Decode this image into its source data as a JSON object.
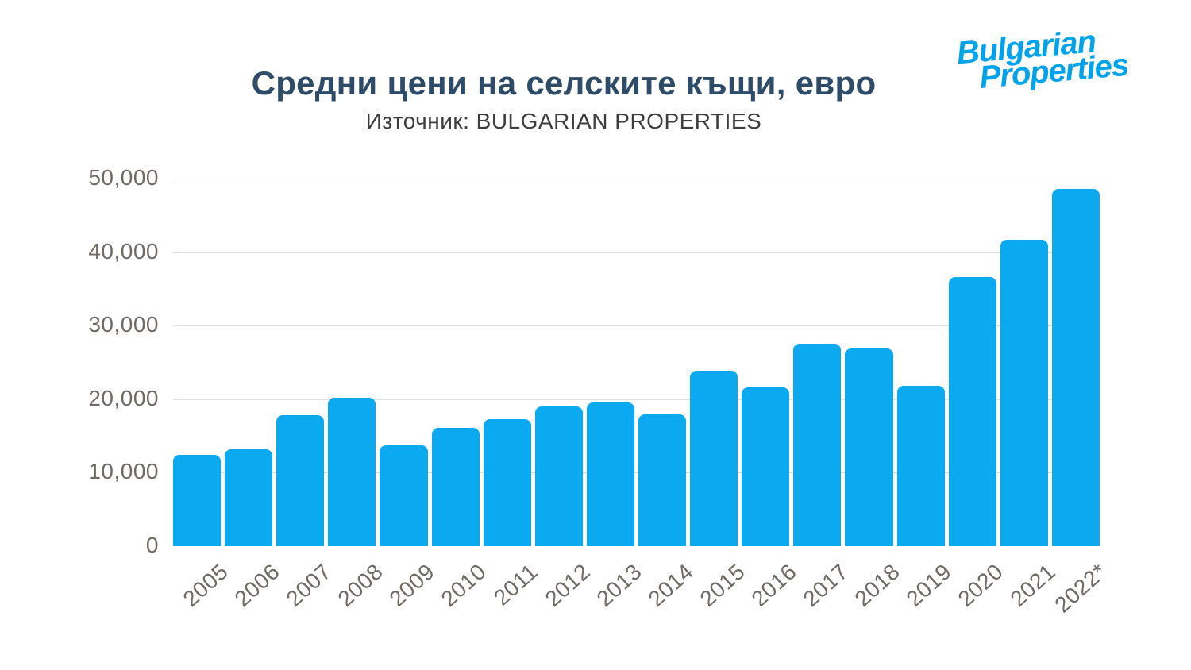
{
  "header": {
    "title": "Средни цени на селските къщи, евро",
    "subtitle": "Източник: BULGARIAN PROPERTIES"
  },
  "logo": {
    "line1": "Bulgarian",
    "line2": "Properties",
    "color": "#00A3EA"
  },
  "chart_data": {
    "type": "bar",
    "title": "Средни цени на селските къщи, евро",
    "source": "Източник: BULGARIAN PROPERTIES",
    "categories": [
      "2005",
      "2006",
      "2007",
      "2008",
      "2009",
      "2010",
      "2011",
      "2012",
      "2013",
      "2014",
      "2015",
      "2016",
      "2017",
      "2018",
      "2019",
      "2020",
      "2021",
      "2022*"
    ],
    "values": [
      12400,
      13200,
      17800,
      20200,
      13700,
      16100,
      17300,
      19000,
      19500,
      17900,
      23900,
      21600,
      27500,
      26900,
      21800,
      36600,
      41700,
      48600
    ],
    "ylim": [
      0,
      50000
    ],
    "ytick_values": [
      50000,
      40000,
      30000,
      20000,
      10000,
      0
    ],
    "ytick_labels": [
      "50,000",
      "40,000",
      "30,000",
      "20,000",
      "10,000",
      "0"
    ],
    "grid": true,
    "legend": "none",
    "bar_color": "#0AA9F0",
    "gridline_color": "#DEDEDC",
    "tick_color": "#6F6B64",
    "title_color": "#2E4C67",
    "subtitle_color": "#3D3D3D"
  }
}
